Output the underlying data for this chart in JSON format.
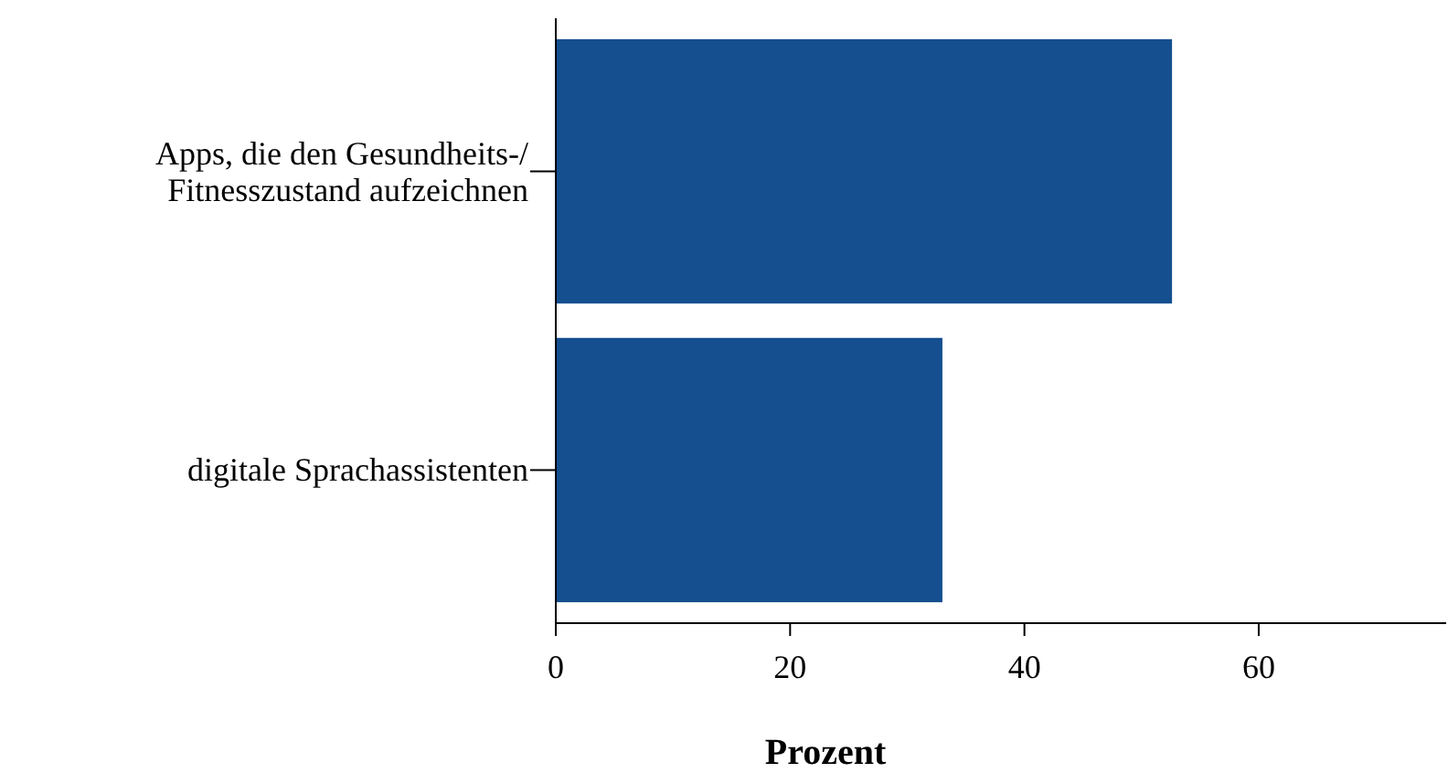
{
  "chart_data": {
    "type": "bar",
    "orientation": "horizontal",
    "categories": [
      "Apps, die den Gesundheits-/\nFitnesszustand aufzeichnen",
      "digitale Sprachassistenten"
    ],
    "values": [
      52.6,
      33.0
    ],
    "color": "#154f8f",
    "xlabel": "Prozent",
    "xlim": [
      0,
      76
    ],
    "xticks": [
      0,
      20,
      40,
      60
    ]
  }
}
